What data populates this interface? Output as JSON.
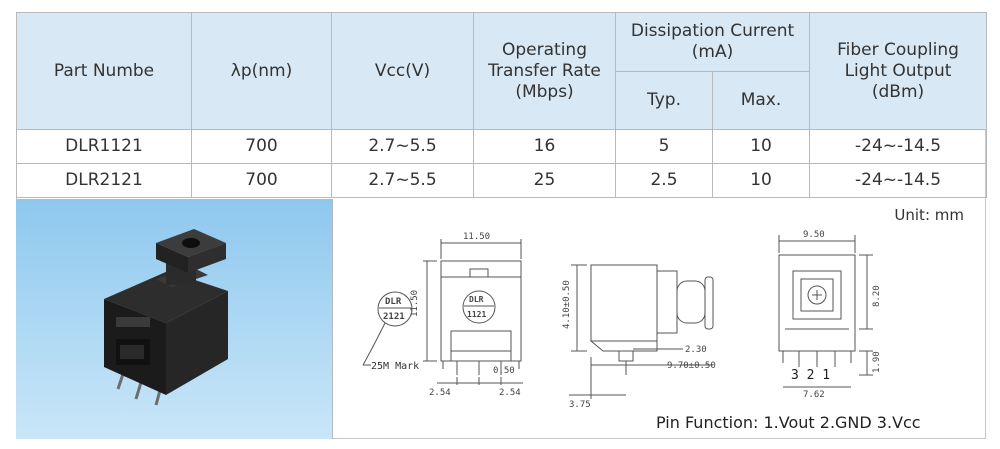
{
  "table": {
    "headers": {
      "part": "Part Numbe",
      "wavelength": "λp(nm)",
      "vcc": "Vcc(V)",
      "rate": "Operating Transfer Rate (Mbps)",
      "current": "Dissipation Current (mA)",
      "typ": "Typ.",
      "max": "Max.",
      "output": "Fiber Coupling Light Output (dBm)"
    },
    "rows": [
      {
        "part": "DLR1121",
        "wavelength": "700",
        "vcc": "2.7~5.5",
        "rate": "16",
        "typ": "5",
        "max": "10",
        "output": "-24~-14.5"
      },
      {
        "part": "DLR2121",
        "wavelength": "700",
        "vcc": "2.7~5.5",
        "rate": "25",
        "typ": "2.5",
        "max": "10",
        "output": "-24~-14.5"
      }
    ]
  },
  "drawing": {
    "unit": "Unit:  mm",
    "pin_function": "Pin Function: 1.Vout   2.GND   3.Vcc",
    "marking_top": "DLR",
    "marking_bottom": "2121",
    "marking_small_top": "DLR",
    "marking_small_bottom": "1121",
    "mark_note": "25M Mark",
    "dims": {
      "front_width": "11.50",
      "front_height": "11.50",
      "pin_w": "0.50",
      "pitch_a": "2.54",
      "pitch_b": "2.54",
      "side_height": "4.10±0.50",
      "side_pin": "2.30",
      "side_depth": "9.70±0.50",
      "side_len": "3.75",
      "back_width": "9.50",
      "back_height": "8.20",
      "back_pin": "1.90",
      "back_pitch": "7.62",
      "pin_numbers": "3 2 1"
    }
  },
  "colors": {
    "header_bg": "#d8e8f4",
    "photo_bg": "#a9d6f3",
    "line": "#555555"
  }
}
